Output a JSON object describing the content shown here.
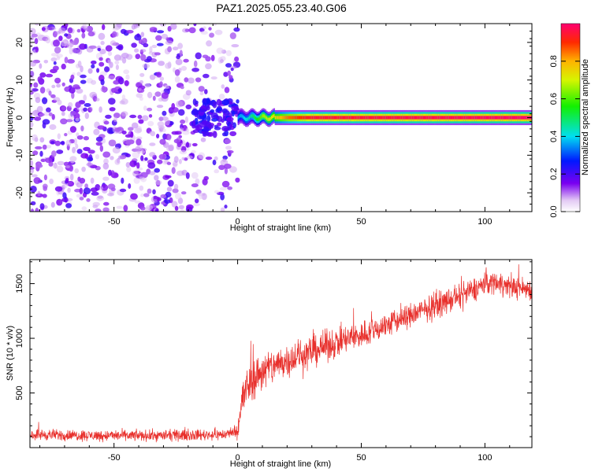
{
  "figure_title": "PAZ1.2025.055.23.40.G06",
  "chart_data": [
    {
      "type": "heatmap",
      "name": "spectrogram",
      "title": "PAZ1.2025.055.23.40.G06",
      "xlabel": "Height of straight line (km)",
      "ylabel": "Frequency (Hz)",
      "xlim": [
        -84,
        119
      ],
      "ylim": [
        -25,
        25
      ],
      "x_ticks": [
        -50,
        0,
        50,
        100
      ],
      "y_ticks": [
        -20,
        -10,
        0,
        10,
        20
      ],
      "noise_region_x": [
        -84,
        0
      ],
      "noise_region_density": "x<=-20: dense scattered blobs; -20..0: sparser, strong cluster near f=0",
      "signal_band": {
        "x_start": 0,
        "x_end": 119,
        "center_frequency_hz": 0,
        "half_width_hz": 1,
        "amplitude_profile": [
          {
            "x": 0,
            "amplitude": 0.35
          },
          {
            "x": 5,
            "amplitude": 0.45
          },
          {
            "x": 10,
            "amplitude": 0.65
          },
          {
            "x": 20,
            "amplitude": 0.85
          },
          {
            "x": 30,
            "amplitude": 0.95
          },
          {
            "x": 119,
            "amplitude": 1.0
          }
        ]
      },
      "colorbar": {
        "label": "Normalized spectral amplitude",
        "range": [
          0,
          1
        ],
        "ticks": [
          "0.0",
          "0.2",
          "0.4",
          "0.6",
          "0.8"
        ],
        "tick_values": [
          0.0,
          0.2,
          0.4,
          0.6,
          0.8
        ],
        "colormap": "rainbow (violet-blue-cyan-green-yellow-red)"
      }
    },
    {
      "type": "line",
      "name": "snr",
      "xlabel": "Height of straight line (km)",
      "ylabel": "SNR (10 * v/v)",
      "xlim": [
        -84,
        119
      ],
      "ylim": [
        0,
        1720
      ],
      "x_ticks": [
        -50,
        0,
        50,
        100
      ],
      "y_ticks": [
        500,
        1000,
        1500
      ],
      "color": "#e8302c",
      "trend": {
        "x": [
          -84,
          -60,
          -30,
          -5,
          0,
          2,
          5,
          10,
          20,
          30,
          40,
          50,
          60,
          70,
          80,
          90,
          100,
          105,
          110,
          119
        ],
        "y": [
          120,
          110,
          110,
          120,
          160,
          450,
          600,
          700,
          800,
          880,
          960,
          1030,
          1120,
          1210,
          1300,
          1380,
          1500,
          1520,
          1470,
          1450
        ]
      },
      "noise_amplitude": {
        "x": [
          -84,
          -1,
          2,
          20,
          60,
          119
        ],
        "y": [
          55,
          55,
          220,
          170,
          130,
          110
        ]
      }
    }
  ]
}
